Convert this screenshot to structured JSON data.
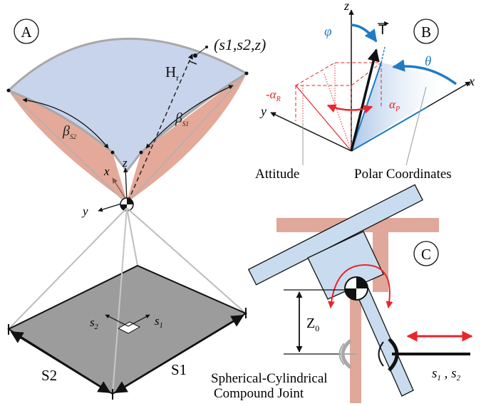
{
  "panels": {
    "a": "A",
    "b": "B",
    "c": "C"
  },
  "panel_a": {
    "point_label": "(s1,s2,z)",
    "hr_label": "H",
    "hr_sub": "r",
    "beta_s1": "β",
    "beta_s1_sub": "S1",
    "beta_s2": "β",
    "beta_s2_sub": "S2",
    "axis_x": "x",
    "axis_y": "y",
    "axis_z": "z",
    "s1": "s",
    "s1_sub": "1",
    "s2": "s",
    "s2_sub": "2",
    "edge_s1": "S1",
    "edge_s2": "S2"
  },
  "panel_b": {
    "axis_z": "z",
    "axis_x": "x",
    "axis_y": "y",
    "thrust": "T",
    "phi": "φ",
    "theta": "θ",
    "alpha_p": "α",
    "alpha_p_sub": "P",
    "alpha_r": "-α",
    "alpha_r_sub": "R",
    "attitude": "Attitude",
    "polar": "Polar Coordinates"
  },
  "panel_c": {
    "z0": "Z",
    "z0_sub": "0",
    "joint_line1": "Spherical-Cylindrical",
    "joint_line2": "Compound Joint",
    "s12": "s",
    "s12_sub1": "1",
    "s12_sep": " , ",
    "s12_sub2": "2"
  },
  "colors": {
    "cap_blue": "#c8d4ec",
    "cap_pink": "#e4a999",
    "plate_gray": "#9c9c9c",
    "frame_pink": "#e0a89a",
    "arm_blue": "#c9dcef",
    "accent_red": "#e8262b",
    "accent_blue": "#1f7bc4"
  }
}
